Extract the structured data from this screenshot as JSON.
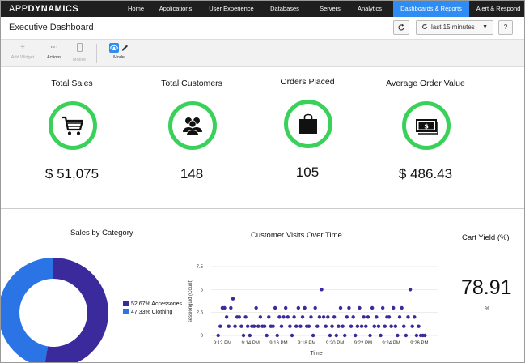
{
  "topbar": {
    "logo_app": "APP",
    "logo_dyn": "DYNAMICS",
    "nav": [
      {
        "label": "Home",
        "active": false
      },
      {
        "label": "Applications",
        "active": false
      },
      {
        "label": "User Experience",
        "active": false
      },
      {
        "label": "Databases",
        "active": false
      },
      {
        "label": "Servers",
        "active": false
      },
      {
        "label": "Analytics",
        "active": false
      },
      {
        "label": "Dashboards & Reports",
        "active": true
      },
      {
        "label": "Alert & Respond",
        "active": false
      }
    ]
  },
  "titlebar": {
    "title": "Executive Dashboard",
    "time_range": "last 15 minutes",
    "help": "?"
  },
  "toolbar": {
    "add_widget": "Add Widget",
    "actions": "Actions",
    "mobile": "Mobile",
    "mode": "Mode"
  },
  "kpis": [
    {
      "title": "Total Sales",
      "value": "$  51,075",
      "icon": "cart-icon"
    },
    {
      "title": "Total Customers",
      "value": "148",
      "icon": "customers-icon"
    },
    {
      "title": "Orders Placed",
      "value": "105",
      "icon": "shopping-bag-icon"
    },
    {
      "title": "Average Order Value",
      "value": "$  486.43",
      "icon": "cash-icon"
    }
  ],
  "colors": {
    "ring": "#3ad15a",
    "accessories": "#3a2a9b",
    "clothing": "#2a74e6",
    "nav_active": "#2f8cf3",
    "scatter": "#3a2a9b"
  },
  "sales_by_category": {
    "title": "Sales by Category",
    "legend": [
      {
        "label": "52.67% Accessories",
        "pct": 52.67
      },
      {
        "label": "47.33% Clothing",
        "pct": 47.33
      }
    ]
  },
  "chart_data": {
    "type": "scatter",
    "title": "Customer Visits Over Time",
    "xlabel": "Time",
    "ylabel": "sessionguid (Count)",
    "ylim": [
      0,
      7.5
    ],
    "yticks": [
      "0",
      "2.5",
      "5",
      "7.5"
    ],
    "xticks": [
      "9:12 PM",
      "9:14 PM",
      "9:16 PM",
      "9:18 PM",
      "9:20 PM",
      "9:22 PM",
      "9:24 PM",
      "9:26 PM"
    ],
    "xlim_minutes": [
      -0.8,
      15.3
    ],
    "points": [
      [
        -0.3,
        0
      ],
      [
        -0.15,
        1
      ],
      [
        0,
        3
      ],
      [
        0.15,
        3
      ],
      [
        0.3,
        2
      ],
      [
        0.45,
        1
      ],
      [
        0.6,
        3
      ],
      [
        0.75,
        4
      ],
      [
        0.9,
        1
      ],
      [
        1.05,
        2
      ],
      [
        1.2,
        2
      ],
      [
        1.35,
        1
      ],
      [
        1.5,
        0
      ],
      [
        1.65,
        2
      ],
      [
        1.8,
        1
      ],
      [
        1.95,
        0
      ],
      [
        2.1,
        1
      ],
      [
        2.25,
        1
      ],
      [
        2.4,
        3
      ],
      [
        2.55,
        1
      ],
      [
        2.7,
        2
      ],
      [
        2.85,
        1
      ],
      [
        3.0,
        1
      ],
      [
        3.15,
        0
      ],
      [
        3.3,
        2
      ],
      [
        3.45,
        1
      ],
      [
        3.6,
        1
      ],
      [
        3.75,
        3
      ],
      [
        3.9,
        0
      ],
      [
        4.05,
        2
      ],
      [
        4.2,
        1
      ],
      [
        4.35,
        2
      ],
      [
        4.5,
        3
      ],
      [
        4.65,
        2
      ],
      [
        4.8,
        1
      ],
      [
        4.95,
        0
      ],
      [
        5.1,
        2
      ],
      [
        5.25,
        1
      ],
      [
        5.4,
        3
      ],
      [
        5.55,
        1
      ],
      [
        5.7,
        2
      ],
      [
        5.85,
        3
      ],
      [
        6.0,
        1
      ],
      [
        6.15,
        1
      ],
      [
        6.3,
        2
      ],
      [
        6.45,
        0
      ],
      [
        6.6,
        3
      ],
      [
        6.75,
        1
      ],
      [
        6.9,
        2
      ],
      [
        7.05,
        5
      ],
      [
        7.2,
        2
      ],
      [
        7.35,
        1
      ],
      [
        7.5,
        2
      ],
      [
        7.65,
        0
      ],
      [
        7.8,
        1
      ],
      [
        7.95,
        2
      ],
      [
        8.1,
        0
      ],
      [
        8.25,
        1
      ],
      [
        8.4,
        3
      ],
      [
        8.55,
        1
      ],
      [
        8.7,
        0
      ],
      [
        8.85,
        2
      ],
      [
        9.0,
        3
      ],
      [
        9.15,
        1
      ],
      [
        9.3,
        2
      ],
      [
        9.45,
        0
      ],
      [
        9.6,
        1
      ],
      [
        9.75,
        3
      ],
      [
        9.9,
        1
      ],
      [
        10.05,
        2
      ],
      [
        10.2,
        1
      ],
      [
        10.35,
        2
      ],
      [
        10.5,
        0
      ],
      [
        10.65,
        3
      ],
      [
        10.8,
        1
      ],
      [
        10.95,
        2
      ],
      [
        11.1,
        1
      ],
      [
        11.25,
        0
      ],
      [
        11.4,
        3
      ],
      [
        11.55,
        1
      ],
      [
        11.7,
        2
      ],
      [
        11.85,
        2
      ],
      [
        12.0,
        1
      ],
      [
        12.15,
        3
      ],
      [
        12.3,
        1
      ],
      [
        12.45,
        0
      ],
      [
        12.6,
        2
      ],
      [
        12.75,
        3
      ],
      [
        12.9,
        1
      ],
      [
        13.05,
        0
      ],
      [
        13.2,
        2
      ],
      [
        13.35,
        5
      ],
      [
        13.5,
        1
      ],
      [
        13.65,
        2
      ],
      [
        13.8,
        0
      ],
      [
        13.95,
        1
      ],
      [
        14.1,
        0
      ],
      [
        14.25,
        0
      ],
      [
        14.4,
        0
      ]
    ]
  },
  "cart_yield": {
    "title": "Cart Yield (%)",
    "value": "78.91",
    "unit": "%"
  }
}
